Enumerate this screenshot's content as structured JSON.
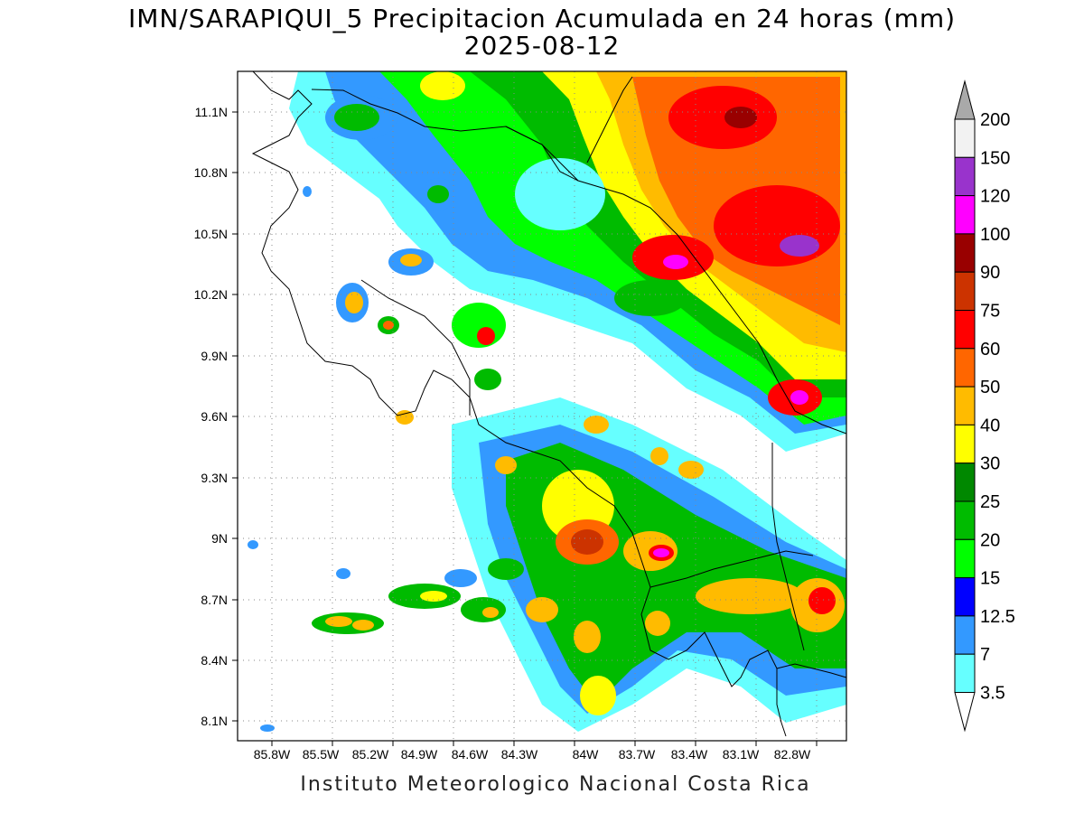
{
  "title_line1": "IMN/SARAPIQUI_5 Precipitacion Acumulada en 24 horas (mm)",
  "title_line2": "2025-08-12",
  "credit": "Instituto Meteorologico Nacional Costa Rica",
  "lat_labels": [
    "11.1N",
    "10.8N",
    "10.5N",
    "10.2N",
    "9.9N",
    "9.6N",
    "9.3N",
    "9N",
    "8.7N",
    "8.4N",
    "8.1N"
  ],
  "lon_labels": [
    "85.8W",
    "85.5W",
    "85.2W",
    "84.9W",
    "84.6W",
    "84.3W",
    "84W",
    "83.7W",
    "83.4W",
    "83.1W",
    "82.8W"
  ],
  "colorbar": {
    "labels": [
      "200",
      "150",
      "120",
      "100",
      "90",
      "75",
      "60",
      "50",
      "40",
      "30",
      "25",
      "20",
      "15",
      "12.5",
      "7",
      "3.5"
    ],
    "colors": [
      "#a9a9a9",
      "#f2f2f2",
      "#9933cc",
      "#ff00ff",
      "#990000",
      "#cc3300",
      "#ff0000",
      "#ff6600",
      "#ffbb00",
      "#ffff00",
      "#008800",
      "#00bb00",
      "#00ff00",
      "#0000ff",
      "#3399ff",
      "#66ffff",
      "#ffffff"
    ]
  }
}
